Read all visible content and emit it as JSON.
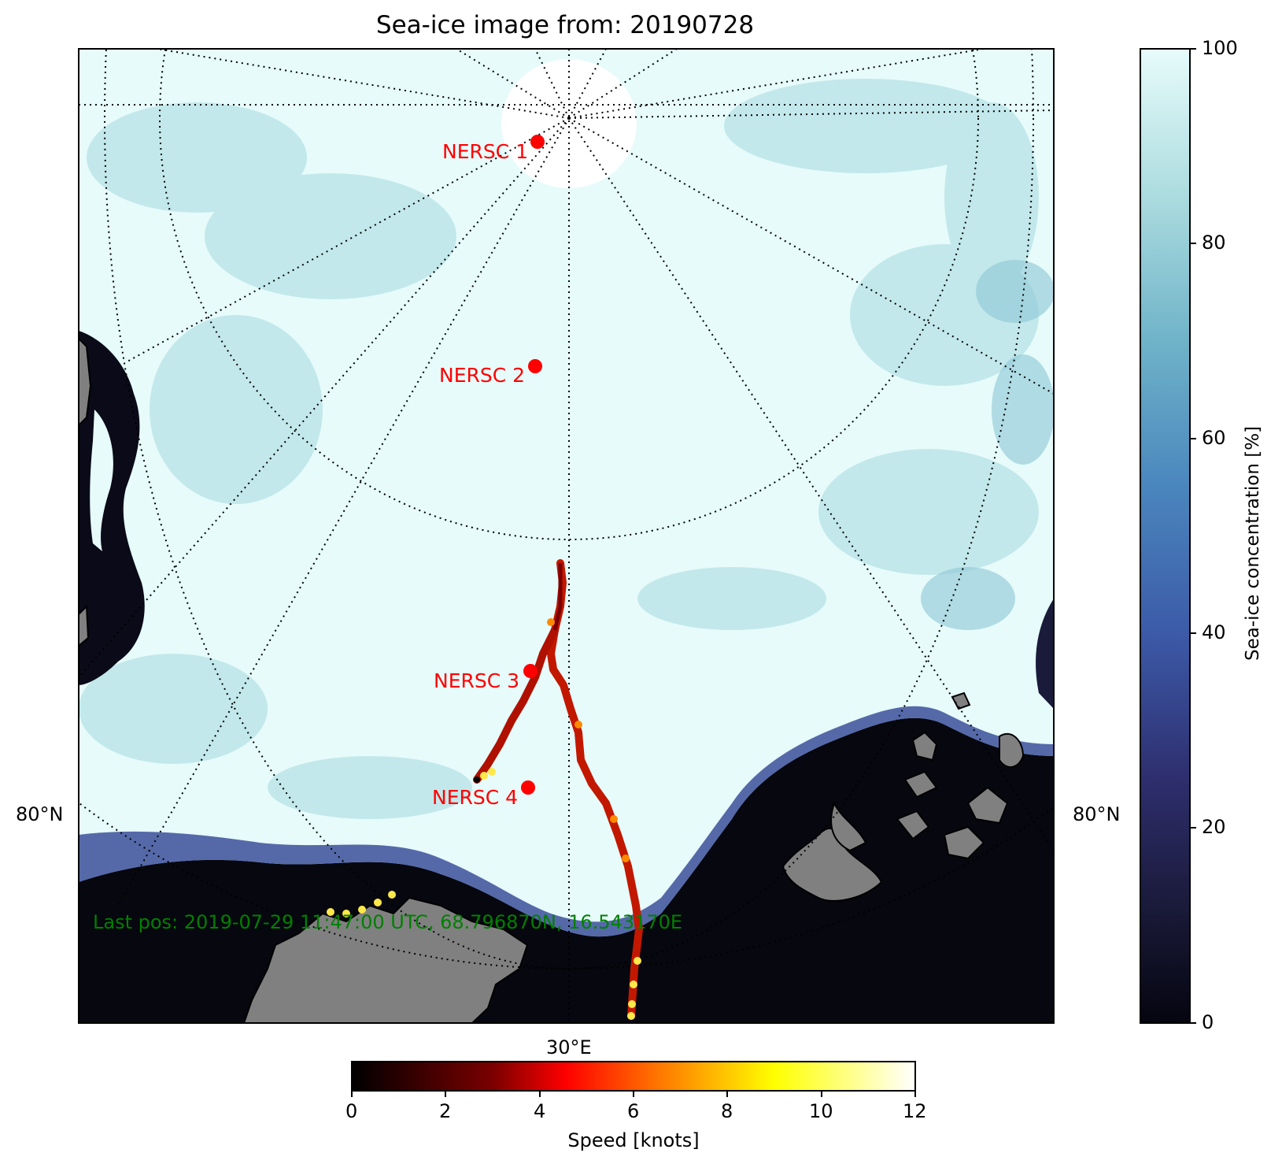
{
  "title": "Sea-ice image from: 20190728",
  "map": {
    "lat_label_left": "80°N",
    "lat_label_right": "80°N",
    "lon_label_bottom": "30°E",
    "last_position": "Last pos: 2019-07-29 11:47:00 UTC, 68.796870N, 16.543170E",
    "stations": [
      {
        "label": "NERSC 1"
      },
      {
        "label": "NERSC 2"
      },
      {
        "label": "NERSC 3"
      },
      {
        "label": "NERSC 4"
      }
    ]
  },
  "colorbars": {
    "ice": {
      "label": "Sea-ice concentration [%]",
      "ticks": [
        "0",
        "20",
        "40",
        "60",
        "80",
        "100"
      ],
      "range": [
        0,
        100
      ]
    },
    "speed": {
      "label": "Speed [knots]",
      "ticks": [
        "0",
        "2",
        "4",
        "6",
        "8",
        "10",
        "12"
      ],
      "range": [
        0,
        12
      ]
    }
  },
  "colors": {
    "ice_high": "#e6fbfa",
    "ice_mid": "#6fb6cc",
    "ice_low": "#3b5fae",
    "open_water": "#07070f",
    "land": "#808080",
    "station": "#ff0000",
    "last_pos_text": "#008000"
  }
}
